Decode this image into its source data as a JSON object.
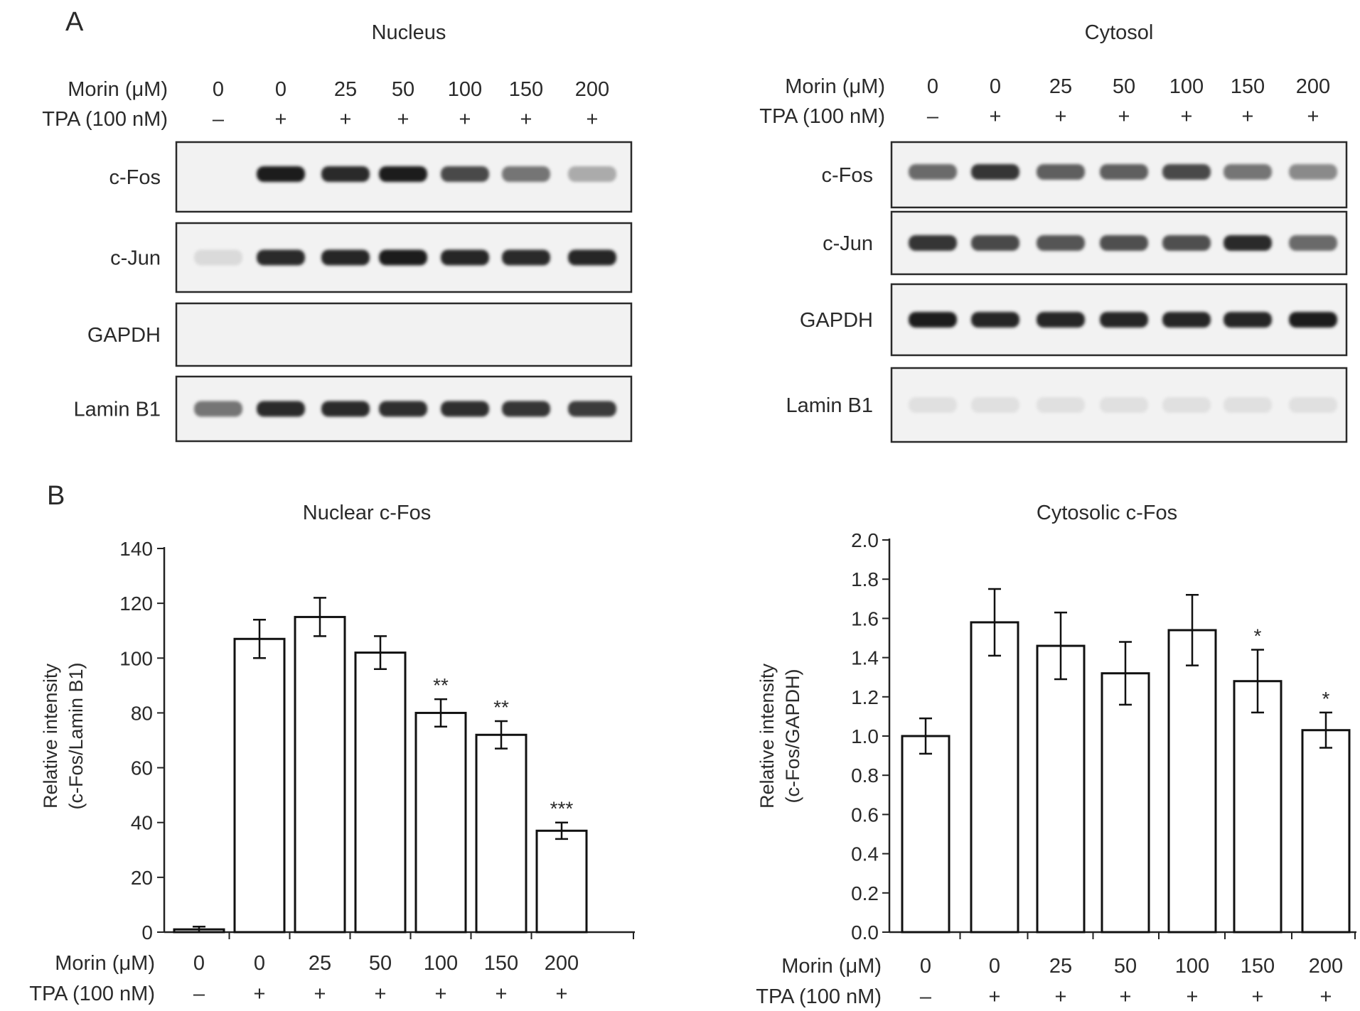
{
  "panel_a": {
    "label": "A",
    "morin_label": "Morin (μM)",
    "tpa_label": "TPA (100 nM)",
    "lanes": [
      {
        "morin": "0",
        "tpa": "–"
      },
      {
        "morin": "0",
        "tpa": "+"
      },
      {
        "morin": "25",
        "tpa": "+"
      },
      {
        "morin": "50",
        "tpa": "+"
      },
      {
        "morin": "100",
        "tpa": "+"
      },
      {
        "morin": "150",
        "tpa": "+"
      },
      {
        "morin": "200",
        "tpa": "+"
      }
    ],
    "blots": [
      {
        "title": "Nucleus",
        "proteins": [
          {
            "name": "c-Fos",
            "intensity": [
              0.0,
              0.95,
              0.9,
              0.95,
              0.75,
              0.55,
              0.3
            ]
          },
          {
            "name": "c-Jun",
            "intensity": [
              0.08,
              0.9,
              0.92,
              0.95,
              0.92,
              0.9,
              0.92
            ]
          },
          {
            "name": "GAPDH",
            "intensity": [
              0,
              0,
              0,
              0,
              0,
              0,
              0
            ]
          },
          {
            "name": "Lamin B1",
            "intensity": [
              0.55,
              0.9,
              0.9,
              0.88,
              0.88,
              0.85,
              0.82
            ]
          }
        ]
      },
      {
        "title": "Cytosol",
        "proteins": [
          {
            "name": "c-Fos",
            "intensity": [
              0.6,
              0.85,
              0.65,
              0.65,
              0.75,
              0.55,
              0.45
            ]
          },
          {
            "name": "c-Jun",
            "intensity": [
              0.85,
              0.75,
              0.7,
              0.72,
              0.72,
              0.9,
              0.6
            ]
          },
          {
            "name": "GAPDH",
            "intensity": [
              0.95,
              0.92,
              0.92,
              0.92,
              0.92,
              0.92,
              0.95
            ]
          },
          {
            "name": "Lamin B1",
            "intensity": [
              0.05,
              0.05,
              0.05,
              0.05,
              0.05,
              0.05,
              0.05
            ]
          }
        ]
      }
    ]
  },
  "panel_b": {
    "label": "B"
  },
  "chart_data": [
    {
      "type": "bar",
      "title": "Nuclear c-Fos",
      "ylabel": [
        "Relative intensity",
        "(c-Fos/Lamin B1)"
      ],
      "ylim": [
        0,
        140
      ],
      "yticks": [
        "0",
        "20",
        "40",
        "60",
        "80",
        "100",
        "120",
        "140"
      ],
      "categories": [
        "0",
        "0",
        "25",
        "50",
        "100",
        "150",
        "200"
      ],
      "row_labels": [
        "Morin (μM)",
        "TPA (100 nM)"
      ],
      "tpa": [
        "–",
        "+",
        "+",
        "+",
        "+",
        "+",
        "+"
      ],
      "values": [
        1,
        107,
        115,
        102,
        80,
        72,
        37
      ],
      "errors": [
        1,
        7,
        7,
        6,
        5,
        5,
        3
      ],
      "significance": [
        "",
        "",
        "",
        "",
        "**",
        "**",
        "***"
      ]
    },
    {
      "type": "bar",
      "title": "Cytosolic c-Fos",
      "ylabel": [
        "Relative intensity",
        "(c-Fos/GAPDH)"
      ],
      "ylim": [
        0,
        2.0
      ],
      "yticks": [
        "0.0",
        "0.2",
        "0.4",
        "0.6",
        "0.8",
        "1.0",
        "1.2",
        "1.4",
        "1.6",
        "1.8",
        "2.0"
      ],
      "categories": [
        "0",
        "0",
        "25",
        "50",
        "100",
        "150",
        "200"
      ],
      "row_labels": [
        "Morin (μM)",
        "TPA (100 nM)"
      ],
      "tpa": [
        "–",
        "+",
        "+",
        "+",
        "+",
        "+",
        "+"
      ],
      "values": [
        1.0,
        1.58,
        1.46,
        1.32,
        1.54,
        1.28,
        1.03
      ],
      "errors": [
        0.09,
        0.17,
        0.17,
        0.16,
        0.18,
        0.16,
        0.09
      ],
      "significance": [
        "",
        "",
        "",
        "",
        "",
        "*",
        "*"
      ]
    }
  ]
}
